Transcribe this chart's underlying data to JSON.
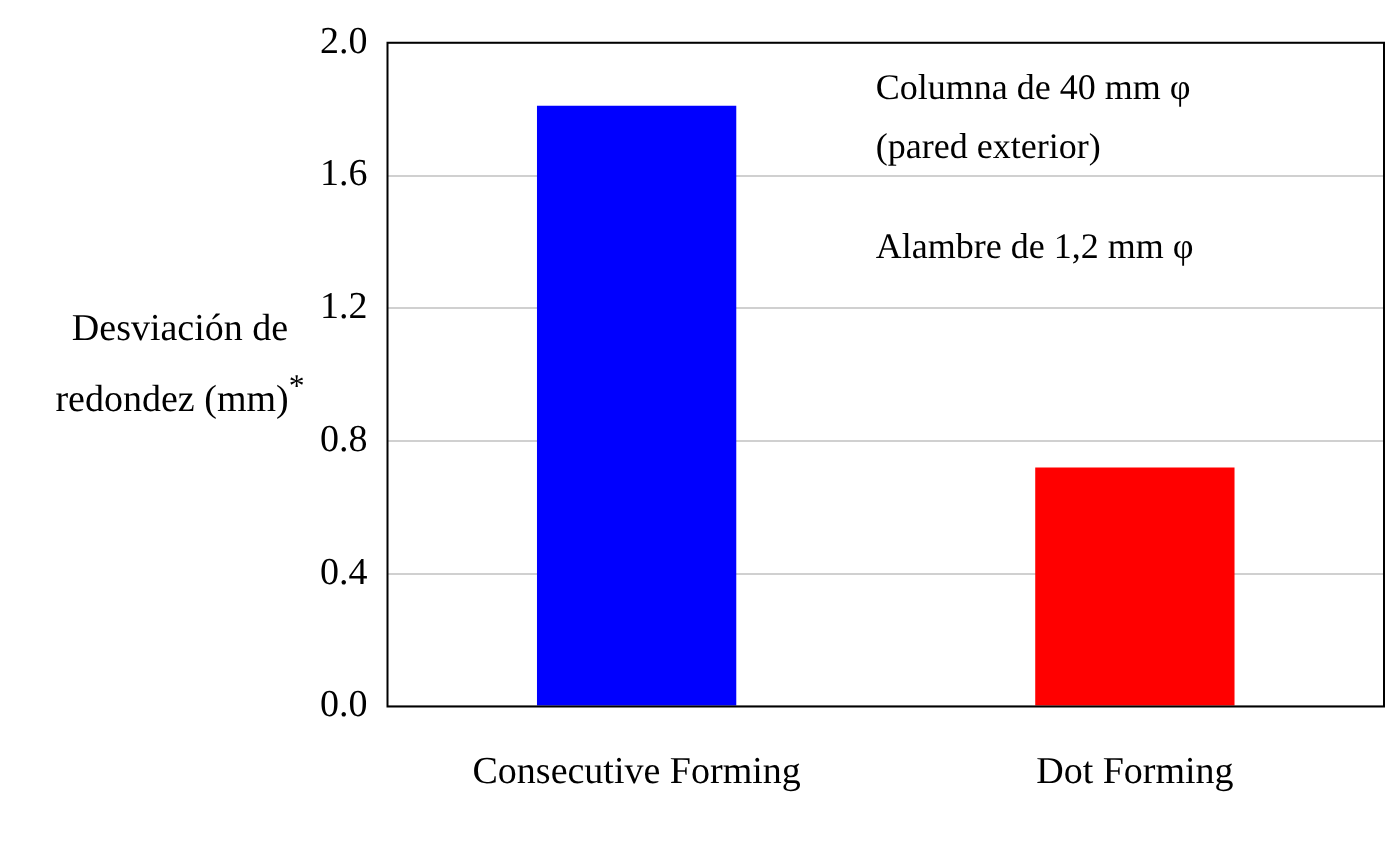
{
  "chart_data": {
    "type": "bar",
    "ylabel": "Desviación de redondez (mm)$^{*}$",
    "categories": [
      "Consecutive Forming",
      "Dot Forming"
    ],
    "values": [
      1.81,
      0.72
    ],
    "colors": [
      "#0000ff",
      "#ff0000"
    ],
    "ylim": [
      0,
      2
    ],
    "yticks": [
      {
        "value": 0,
        "label": "0.0"
      },
      {
        "value": 0.4,
        "label": "0.4"
      },
      {
        "value": 0.8,
        "label": "0.8"
      },
      {
        "value": 1.2,
        "label": "1.2"
      },
      {
        "value": 1.6,
        "label": "1.6"
      },
      {
        "value": 2,
        "label": "2.0"
      }
    ],
    "grid": "y",
    "annotations": [
      "Columna de 40 mm φ",
      "(pared exterior)",
      "Alambre de 1,2 mm φ"
    ]
  }
}
